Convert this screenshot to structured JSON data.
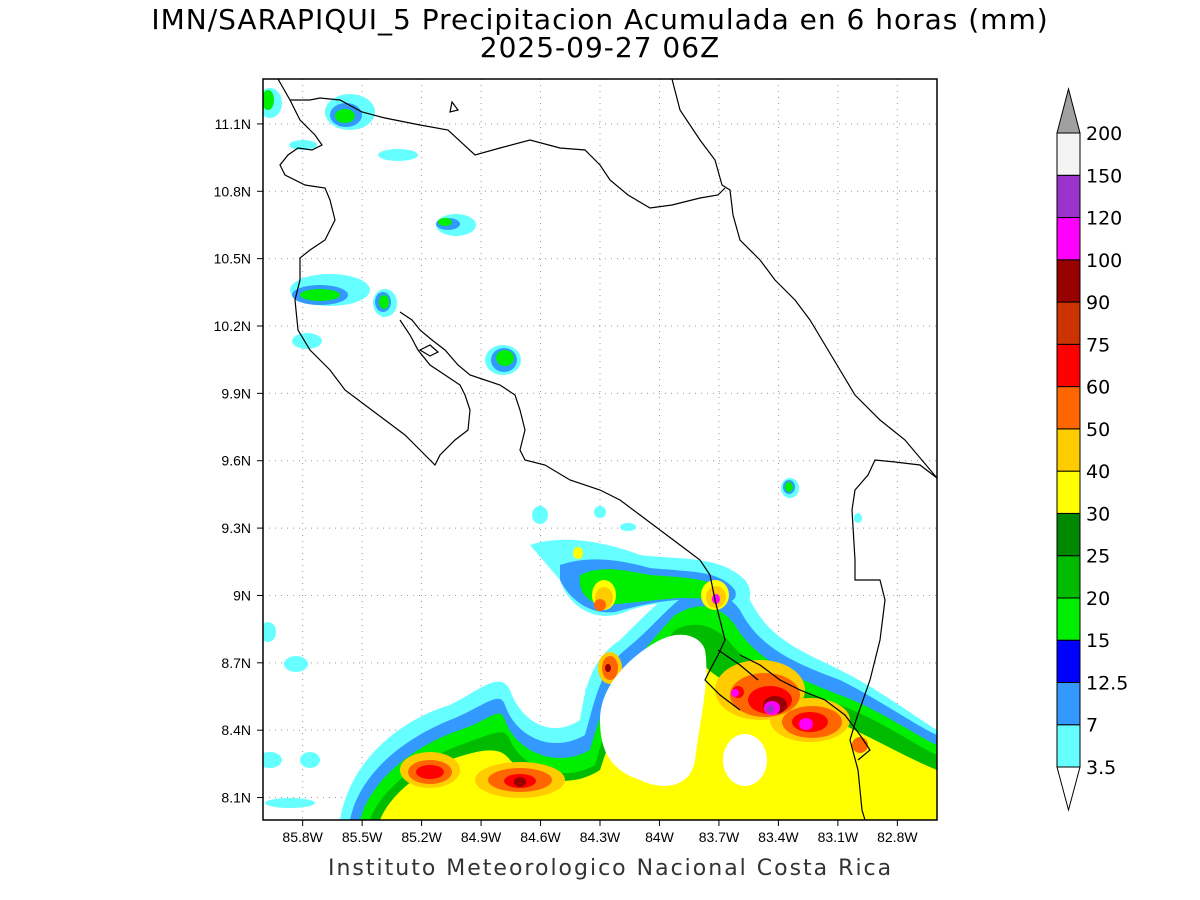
{
  "title": {
    "line1": "IMN/SARAPIQUI_5 Precipitacion Acumulada en 6 horas (mm)",
    "line2": "2025-09-27 06Z"
  },
  "footer": "Instituto Meteorologico Nacional Costa Rica",
  "map": {
    "lon_range": [
      -86.0,
      -82.6
    ],
    "lat_range": [
      8.0,
      11.3
    ],
    "lon_ticks": [
      "85.8W",
      "85.5W",
      "85.2W",
      "84.9W",
      "84.6W",
      "84.3W",
      "84W",
      "83.7W",
      "83.4W",
      "83.1W",
      "82.8W"
    ],
    "lat_ticks": [
      "11.1N",
      "10.8N",
      "10.5N",
      "10.2N",
      "9.9N",
      "9.6N",
      "9.3N",
      "9N",
      "8.7N",
      "8.4N",
      "8.1N"
    ],
    "grid": "dotted"
  },
  "colorbar": {
    "labels": [
      "3.5",
      "7",
      "12.5",
      "15",
      "20",
      "25",
      "30",
      "40",
      "50",
      "60",
      "75",
      "90",
      "100",
      "120",
      "150",
      "200"
    ],
    "colors": [
      "#66ffff",
      "#3399ff",
      "#0000ff",
      "#00ee00",
      "#00bb00",
      "#008800",
      "#ffff00",
      "#ffcc00",
      "#ff6600",
      "#ff0000",
      "#cc3300",
      "#990000",
      "#ff00ff",
      "#9933cc",
      "#f4f4f4"
    ],
    "under_color": "#ffffff",
    "over_color": "#a0a0a0"
  }
}
